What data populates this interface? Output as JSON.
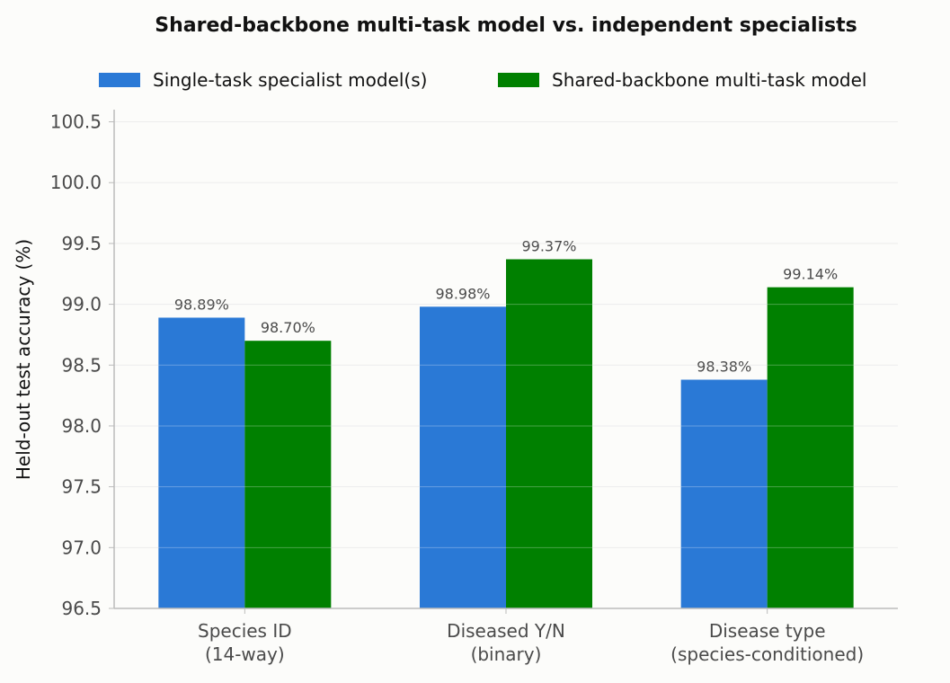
{
  "chart_data": {
    "type": "bar",
    "title": "Shared-backbone multi-task model vs. independent specialists",
    "xlabel": "",
    "ylabel": "Held-out test accuracy (%)",
    "categories": [
      [
        "Species ID",
        "(14-way)"
      ],
      [
        "Diseased Y/N",
        "(binary)"
      ],
      [
        "Disease type",
        "(species-conditioned)"
      ]
    ],
    "series": [
      {
        "name": "Single-task specialist model(s)",
        "color": "#2a79d6",
        "values": [
          98.89,
          98.98,
          98.38
        ],
        "labels": [
          "98.89%",
          "98.98%",
          "98.38%"
        ]
      },
      {
        "name": "Shared-backbone multi-task model",
        "color": "#008000",
        "values": [
          98.7,
          99.37,
          99.14
        ],
        "labels": [
          "98.70%",
          "99.37%",
          "99.14%"
        ]
      }
    ],
    "ylim": [
      96.5,
      100.6
    ],
    "yticks": [
      "96.5",
      "97.0",
      "97.5",
      "98.0",
      "98.5",
      "99.0",
      "99.5",
      "100.0",
      "100.5"
    ],
    "grid": "horizontal",
    "legend_position": "top"
  }
}
